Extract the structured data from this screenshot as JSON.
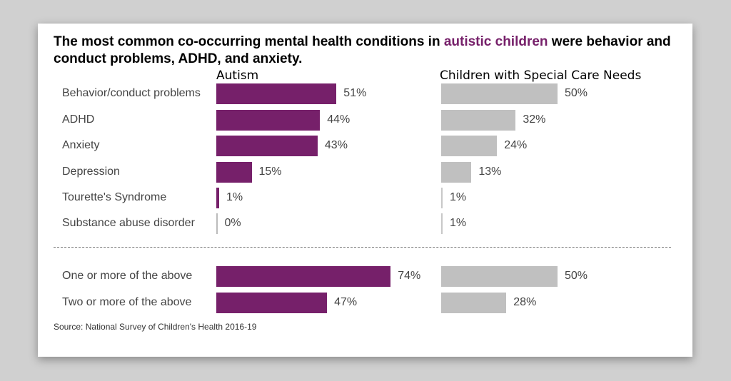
{
  "chart_data": {
    "type": "bar",
    "title_prefix": "The most common co-occurring mental health conditions in ",
    "title_highlight": "autistic children",
    "title_suffix": " were behavior and conduct problems, ADHD, and anxiety.",
    "categories": [
      "Behavior/conduct problems",
      "ADHD",
      "Anxiety",
      "Depression",
      "Tourette's Syndrome",
      "Substance abuse disorder",
      "One or more of the above",
      "Two or more of the above"
    ],
    "series": [
      {
        "name": "Autism",
        "values": [
          51,
          44,
          43,
          15,
          1,
          0,
          74,
          47
        ],
        "color": "#76206a"
      },
      {
        "name": "Children with Special Care Needs",
        "values": [
          50,
          32,
          24,
          13,
          1,
          1,
          50,
          28
        ],
        "color": "#c0c0c0"
      }
    ],
    "value_labels": [
      [
        "51%",
        "44%",
        "43%",
        "15%",
        "1%",
        "0%",
        "74%",
        "47%"
      ],
      [
        "50%",
        "32%",
        "24%",
        "13%",
        "1%",
        "1%",
        "50%",
        "28%"
      ]
    ],
    "source": "Source: National Survey of Children's Health 2016-19",
    "unit": "%"
  }
}
